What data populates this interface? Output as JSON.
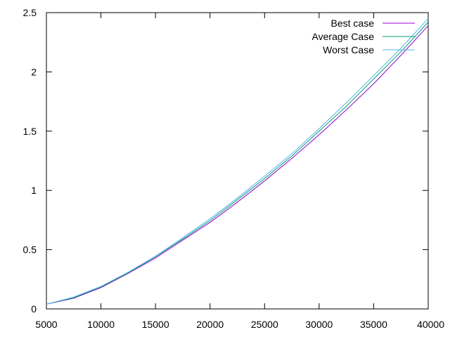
{
  "chart_data": {
    "type": "line",
    "title": "",
    "xlabel": "",
    "ylabel": "",
    "xlim": [
      5000,
      40000
    ],
    "ylim": [
      0,
      2.5
    ],
    "xticks": [
      5000,
      10000,
      15000,
      20000,
      25000,
      30000,
      35000,
      40000
    ],
    "yticks": [
      0,
      0.5,
      1,
      1.5,
      2,
      2.5
    ],
    "xtick_labels": [
      "5000",
      "10000",
      "15000",
      "20000",
      "25000",
      "30000",
      "35000",
      "40000"
    ],
    "ytick_labels": [
      "0",
      "0.5",
      "1",
      "1.5",
      "2",
      "2.5"
    ],
    "grid": false,
    "legend_position": "top-right",
    "x": [
      5000,
      7500,
      10000,
      12500,
      15000,
      17500,
      20000,
      22500,
      25000,
      27500,
      30000,
      32500,
      35000,
      37500,
      40000
    ],
    "series": [
      {
        "name": "Best case",
        "color": "#9400d3",
        "values": [
          0.04,
          0.09,
          0.18,
          0.3,
          0.43,
          0.58,
          0.73,
          0.9,
          1.08,
          1.27,
          1.47,
          1.68,
          1.9,
          2.14,
          2.39
        ]
      },
      {
        "name": "Average Case",
        "color": "#009e73",
        "values": [
          0.04,
          0.095,
          0.185,
          0.305,
          0.44,
          0.59,
          0.745,
          0.92,
          1.1,
          1.29,
          1.5,
          1.71,
          1.94,
          2.17,
          2.42
        ]
      },
      {
        "name": "Worst Case",
        "color": "#56b4e9",
        "values": [
          0.04,
          0.1,
          0.19,
          0.31,
          0.445,
          0.6,
          0.76,
          0.935,
          1.12,
          1.31,
          1.52,
          1.74,
          1.97,
          2.2,
          2.45
        ]
      }
    ]
  }
}
